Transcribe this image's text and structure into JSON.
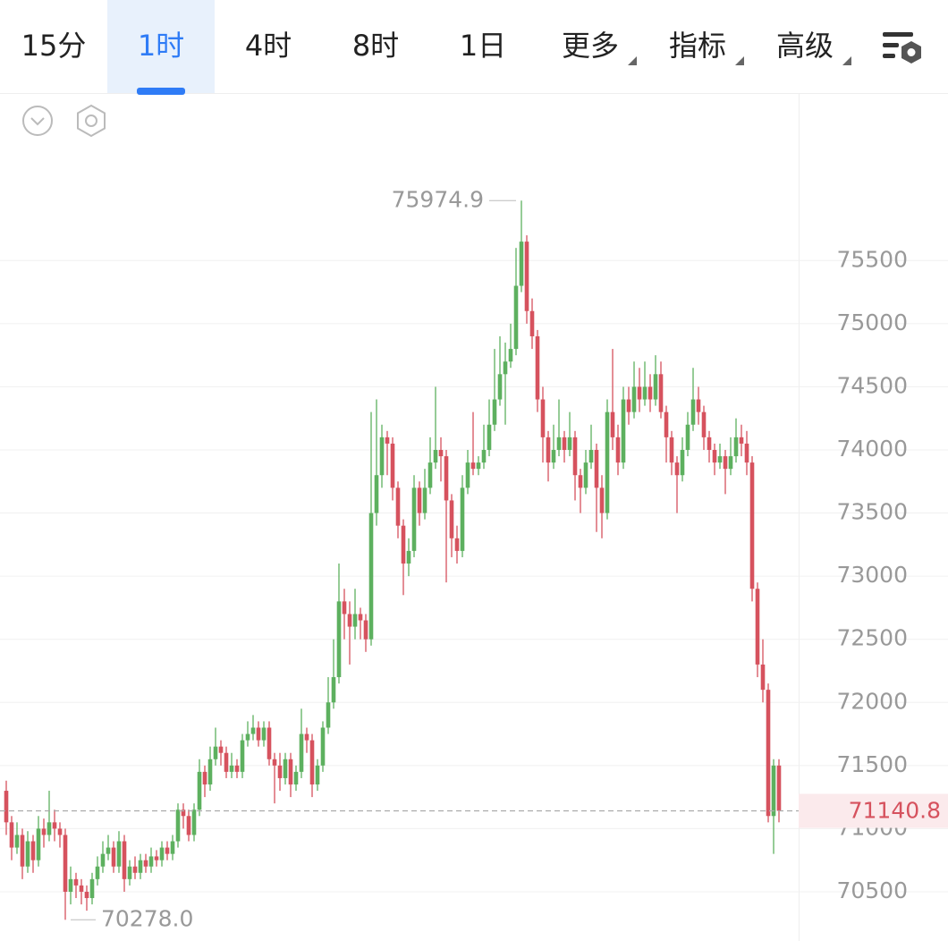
{
  "toolbar": {
    "tabs": [
      "15分",
      "1时",
      "4时",
      "8时",
      "1日",
      "更多",
      "指标",
      "高级"
    ],
    "active": 1,
    "dropdown_tabs": [
      5,
      6,
      7
    ]
  },
  "chart_data": {
    "type": "candlestick",
    "open": [
      71300,
      71050,
      70850,
      70950,
      70700,
      70900,
      70750,
      71000,
      70950,
      71050,
      71000,
      70950,
      70500,
      70600,
      70550,
      70500,
      70450,
      70600,
      70700,
      70800,
      70850,
      70700,
      70900,
      70600,
      70700,
      70650,
      70750,
      70700,
      70780,
      70750,
      70850,
      70800,
      70900,
      71150,
      71100,
      70950,
      71150,
      71450,
      71350,
      71550,
      71650,
      71600,
      71450,
      71500,
      71450,
      71700,
      71750,
      71800,
      71700,
      71800,
      71550,
      71500,
      71400,
      71550,
      71350,
      71450,
      71750,
      71700,
      71350,
      71500,
      71800,
      72000,
      72200,
      72800,
      72700,
      72600,
      72700,
      72650,
      72500,
      73500,
      73800,
      74100,
      74050,
      73700,
      73400,
      73100,
      73200,
      73700,
      73500,
      73700,
      73900,
      74000,
      73950,
      73600,
      73300,
      73200,
      73700,
      73900,
      73850,
      73900,
      74000,
      74200,
      74400,
      74600,
      74700,
      74800,
      75300,
      75650,
      75100,
      74900,
      74400,
      74100,
      73900,
      74000,
      74100,
      74000,
      74100,
      73800,
      73700,
      73900,
      74000,
      73700,
      73500,
      74300,
      74100,
      73900,
      74400,
      74300,
      74500,
      74400,
      74500,
      74400,
      74600,
      74300,
      74100,
      73900,
      73800,
      74000,
      74200,
      74400,
      74300,
      74100,
      74000,
      73900,
      73950,
      73850,
      73950,
      74100,
      74050,
      73900,
      72900,
      72300,
      72100,
      71100,
      71500
    ],
    "high": [
      71380,
      71100,
      71050,
      71000,
      70980,
      70950,
      71100,
      71080,
      71300,
      71150,
      71050,
      71000,
      70700,
      70650,
      70600,
      70550,
      70650,
      70780,
      70900,
      70950,
      70900,
      70980,
      70950,
      70750,
      70780,
      70800,
      70800,
      70850,
      70830,
      70900,
      70900,
      70950,
      71200,
      71200,
      71150,
      71200,
      71550,
      71500,
      71650,
      71800,
      71700,
      71650,
      71600,
      71550,
      71750,
      71850,
      71900,
      71850,
      71850,
      71850,
      71600,
      71600,
      71600,
      71600,
      71500,
      71950,
      71800,
      71750,
      71550,
      71850,
      72200,
      72500,
      73100,
      72900,
      72800,
      72900,
      72750,
      72700,
      74300,
      74400,
      74200,
      74150,
      74100,
      73750,
      73450,
      73300,
      73800,
      73750,
      73850,
      74100,
      74500,
      74100,
      74000,
      73650,
      73400,
      73800,
      74000,
      74300,
      73950,
      74200,
      74400,
      74800,
      74900,
      74850,
      75000,
      75600,
      75974.9,
      75700,
      75200,
      74950,
      74500,
      74150,
      74200,
      74400,
      74150,
      74300,
      74150,
      73850,
      74000,
      74200,
      74050,
      73800,
      74400,
      74800,
      74200,
      74500,
      74500,
      74700,
      74650,
      74700,
      74600,
      74750,
      74700,
      74350,
      74150,
      73950,
      74100,
      74300,
      74650,
      74500,
      74350,
      74150,
      74050,
      74050,
      74000,
      74100,
      74250,
      74200,
      74150,
      73950,
      72950,
      72500,
      72150,
      71550,
      71550
    ],
    "low": [
      70950,
      70750,
      70800,
      70600,
      70650,
      70650,
      70700,
      70850,
      70900,
      70900,
      70850,
      70278,
      70400,
      70450,
      70400,
      70350,
      70400,
      70550,
      70650,
      70750,
      70650,
      70650,
      70500,
      70550,
      70600,
      70600,
      70650,
      70650,
      70700,
      70700,
      70750,
      70750,
      70850,
      71000,
      70900,
      70900,
      71100,
      71250,
      71300,
      71500,
      71500,
      71400,
      71400,
      71400,
      71400,
      71650,
      71700,
      71650,
      71650,
      71500,
      71200,
      71300,
      71350,
      71250,
      71300,
      71400,
      71600,
      71250,
      71300,
      71450,
      71750,
      71950,
      72150,
      72500,
      72300,
      72500,
      72500,
      72400,
      72450,
      73400,
      73700,
      73800,
      73600,
      73300,
      72850,
      73000,
      73150,
      73400,
      73450,
      73650,
      73850,
      73750,
      72950,
      73150,
      73100,
      73150,
      73650,
      73800,
      73800,
      73850,
      73950,
      74150,
      74350,
      74200,
      74650,
      74750,
      75250,
      75000,
      74800,
      74300,
      73900,
      73750,
      73850,
      73950,
      73900,
      73950,
      73600,
      73500,
      73650,
      73850,
      73350,
      73300,
      73450,
      74000,
      73800,
      73850,
      74200,
      74250,
      74300,
      74350,
      74300,
      74350,
      74250,
      73900,
      73800,
      73500,
      73750,
      73950,
      74150,
      74200,
      74000,
      73900,
      73800,
      73850,
      73650,
      73800,
      73900,
      73950,
      73800,
      72800,
      72200,
      72000,
      71050,
      70800,
      71050
    ],
    "close": [
      71050,
      70850,
      70950,
      70700,
      70900,
      70750,
      71000,
      70950,
      71050,
      71000,
      70950,
      70500,
      70600,
      70550,
      70500,
      70450,
      70600,
      70700,
      70800,
      70850,
      70700,
      70900,
      70600,
      70700,
      70650,
      70750,
      70700,
      70780,
      70750,
      70850,
      70800,
      70900,
      71150,
      71100,
      70950,
      71150,
      71450,
      71350,
      71550,
      71650,
      71600,
      71450,
      71500,
      71450,
      71700,
      71750,
      71800,
      71700,
      71800,
      71550,
      71500,
      71400,
      71550,
      71350,
      71450,
      71750,
      71700,
      71350,
      71500,
      71800,
      72000,
      72200,
      72800,
      72700,
      72600,
      72700,
      72650,
      72500,
      73500,
      73800,
      74100,
      74050,
      73700,
      73400,
      73100,
      73200,
      73700,
      73500,
      73700,
      73900,
      74000,
      73950,
      73600,
      73300,
      73200,
      73700,
      73900,
      73850,
      73900,
      74000,
      74200,
      74400,
      74600,
      74700,
      74800,
      75300,
      75650,
      75100,
      74900,
      74400,
      74100,
      73900,
      74000,
      74100,
      74000,
      74100,
      73800,
      73700,
      73900,
      74000,
      73700,
      73500,
      74300,
      74100,
      73900,
      74400,
      74300,
      74500,
      74400,
      74500,
      74400,
      74600,
      74300,
      74100,
      73900,
      73800,
      74000,
      74200,
      74400,
      74300,
      74100,
      74000,
      73900,
      73950,
      73850,
      73950,
      74100,
      74050,
      73900,
      72900,
      72300,
      72100,
      71100,
      71500,
      71140.8
    ],
    "up_color": "#5db05f",
    "down_color": "#d6525e",
    "ylim": [
      70110,
      76820
    ],
    "yticks": [
      70500,
      71000,
      71500,
      72000,
      72500,
      73000,
      73500,
      74000,
      74500,
      75000,
      75500
    ],
    "grid": true,
    "last_price": 71140.8,
    "max_label": 75974.9,
    "min_label": {
      "value": 70278,
      "label": "70278.0"
    }
  }
}
